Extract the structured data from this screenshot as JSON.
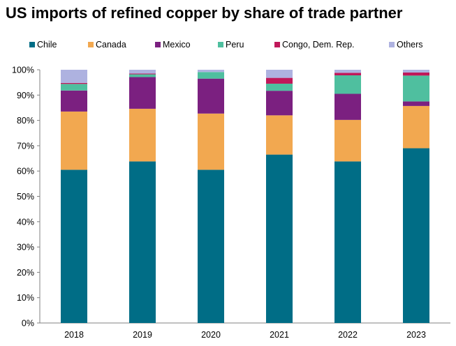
{
  "chart_data": {
    "type": "bar",
    "stacked": true,
    "title": "US imports of refined copper by share of trade partner",
    "xlabel": "",
    "ylabel": "",
    "ylim": [
      0,
      100
    ],
    "yticks": [
      0,
      10,
      20,
      30,
      40,
      50,
      60,
      70,
      80,
      90,
      100
    ],
    "ytick_labels": [
      "0%",
      "10%",
      "20%",
      "30%",
      "40%",
      "50%",
      "60%",
      "70%",
      "80%",
      "90%",
      "100%"
    ],
    "categories": [
      "2018",
      "2019",
      "2020",
      "2021",
      "2022",
      "2023"
    ],
    "legend_position": "top",
    "grid": false,
    "series": [
      {
        "name": "Chile",
        "color": "#006D86",
        "values": [
          60.5,
          63.8,
          60.5,
          66.5,
          63.8,
          69.0
        ]
      },
      {
        "name": "Canada",
        "color": "#F2A850",
        "values": [
          23.0,
          20.8,
          22.2,
          15.5,
          16.4,
          16.7
        ]
      },
      {
        "name": "Mexico",
        "color": "#7B2080",
        "values": [
          8.3,
          12.5,
          13.8,
          9.7,
          10.3,
          1.8
        ]
      },
      {
        "name": "Peru",
        "color": "#4FBF9F",
        "values": [
          2.6,
          1.1,
          2.6,
          2.8,
          7.3,
          10.2
        ]
      },
      {
        "name": "Congo, Dem. Rep.",
        "color": "#C0185A",
        "values": [
          0.4,
          0.3,
          0.0,
          2.3,
          1.0,
          1.2
        ]
      },
      {
        "name": "Others",
        "color": "#AEB2E0",
        "values": [
          5.2,
          1.5,
          0.9,
          3.2,
          1.2,
          1.1
        ]
      }
    ]
  }
}
